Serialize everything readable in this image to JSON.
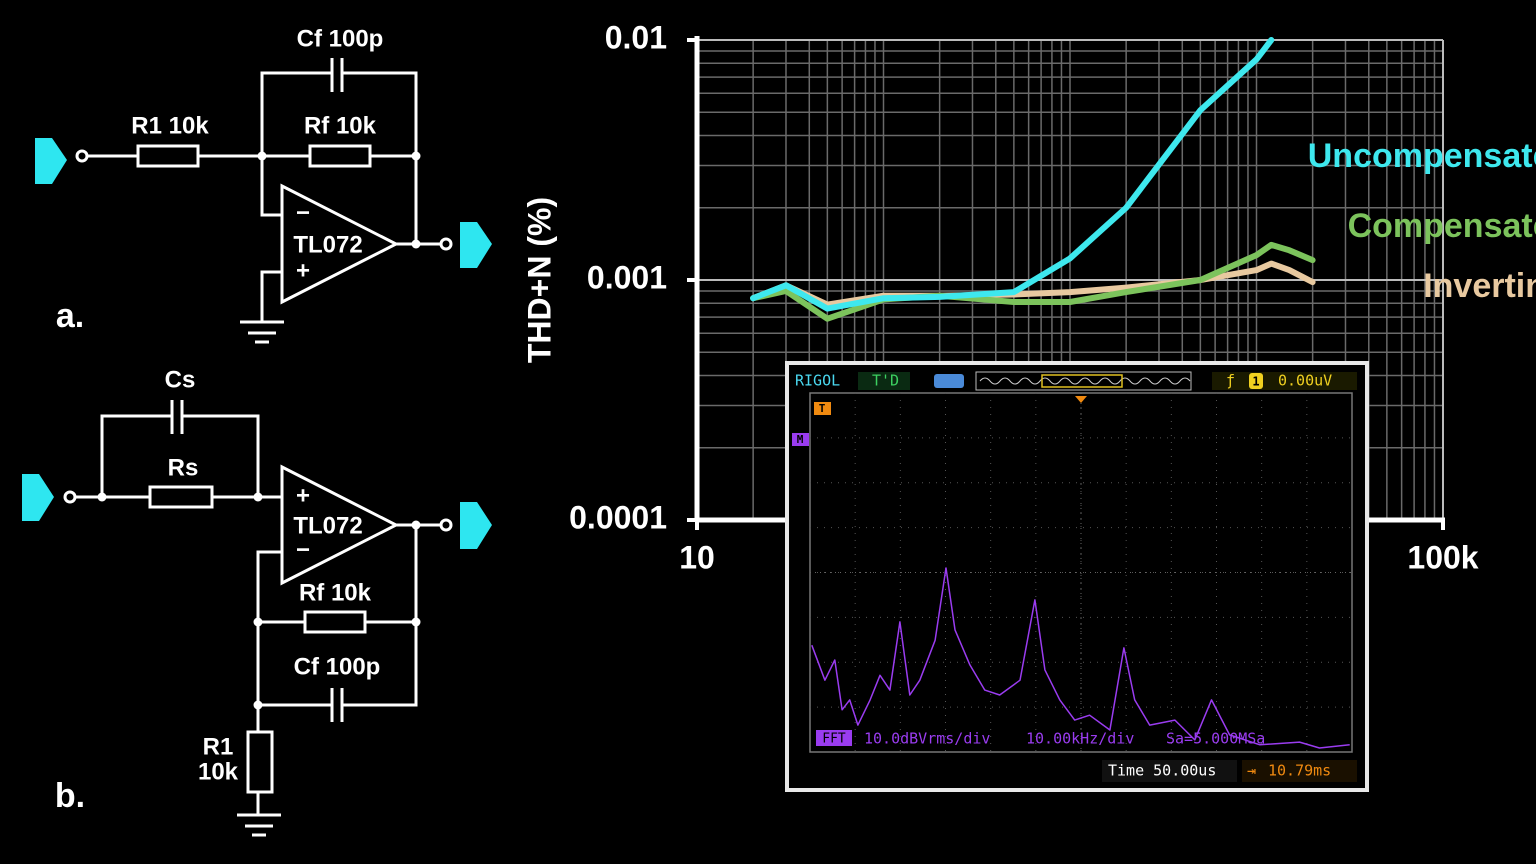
{
  "chart_data": [
    {
      "type": "line",
      "y_label": "THD+N (%)",
      "x": [
        20,
        30,
        50,
        100,
        200,
        500,
        1000,
        2000,
        5000,
        10000,
        12000,
        15000,
        20000
      ],
      "xscale": "log",
      "yscale": "log",
      "grid": true,
      "xlim": [
        10,
        100000
      ],
      "ylim": [
        0.0001,
        0.01
      ],
      "xticks": [
        10,
        {
          "value": 100000,
          "label": "100k"
        }
      ],
      "yticks": [
        0.0001,
        0.001,
        0.01
      ],
      "series": [
        {
          "name": "Uncompensated",
          "color": "#3ee8ee",
          "values": [
            0.00084,
            0.00095,
            0.00076,
            0.00084,
            0.00085,
            0.00089,
            0.00123,
            0.002,
            0.0051,
            0.0083,
            0.01,
            null,
            null
          ]
        },
        {
          "name": "Compensated",
          "color": "#7cc35c",
          "values": [
            0.00084,
            0.0009,
            0.00069,
            0.00083,
            0.00086,
            0.00081,
            0.00081,
            0.00089,
            0.001,
            0.00127,
            0.0014,
            0.00133,
            0.00121
          ]
        },
        {
          "name": "Inverting",
          "color": "#e8c9a0",
          "values": [
            0.00084,
            0.00095,
            0.00079,
            0.00086,
            0.00086,
            0.00087,
            0.00089,
            0.00093,
            0.001,
            0.0011,
            0.00117,
            0.0011,
            0.00098
          ]
        }
      ]
    },
    {
      "type": "line",
      "color": "#9a3cf0",
      "xlim": [
        0,
        12
      ],
      "ylim": [
        0,
        8
      ],
      "x": [
        0.04,
        0.33,
        0.55,
        0.71,
        0.88,
        1.06,
        1.33,
        1.55,
        1.77,
        1.99,
        2.21,
        2.43,
        2.77,
        3.01,
        3.21,
        3.54,
        3.87,
        4.2,
        4.65,
        4.98,
        5.2,
        5.53,
        5.86,
        6.19,
        6.64,
        6.95,
        7.19,
        7.52,
        8.08,
        8.52,
        8.89,
        9.29,
        9.96,
        10.84,
        11.28,
        11.95
      ],
      "values": [
        2.38,
        1.6,
        2.05,
        0.94,
        1.16,
        0.6,
        1.16,
        1.71,
        1.38,
        2.9,
        1.27,
        1.6,
        2.49,
        4.1,
        2.72,
        1.94,
        1.38,
        1.27,
        1.6,
        3.39,
        1.83,
        1.16,
        0.71,
        0.82,
        0.49,
        2.32,
        1.16,
        0.6,
        0.71,
        0.27,
        1.16,
        0.38,
        0.16,
        0.22,
        0.09,
        0.16
      ]
    }
  ],
  "circuit_a": {
    "label": "a.",
    "cf": "Cf 100p",
    "r1": "R1 10k",
    "rf": "Rf 10k",
    "opamp": "TL072",
    "minus": "−",
    "plus": "+"
  },
  "circuit_b": {
    "label": "b.",
    "cs": "Cs",
    "rs": "Rs",
    "opamp": "TL072",
    "plus": "+",
    "minus": "−",
    "rf": "Rf 10k",
    "cf": "Cf 100p",
    "r1": "R1",
    "r1_value": "10k"
  },
  "scope": {
    "brand": "RIGOL",
    "status": "T'D",
    "trigger_source": "1",
    "trigger_level": "0.00uV",
    "trigger_marker": "T",
    "math_marker": "M",
    "fft": "FFT",
    "scale": "10.0dBVrms/div",
    "span": "10.00kHz/div",
    "sample_rate": "Sa=5.000MSa",
    "time": "Time 50.00us",
    "offset": "10.79ms"
  }
}
